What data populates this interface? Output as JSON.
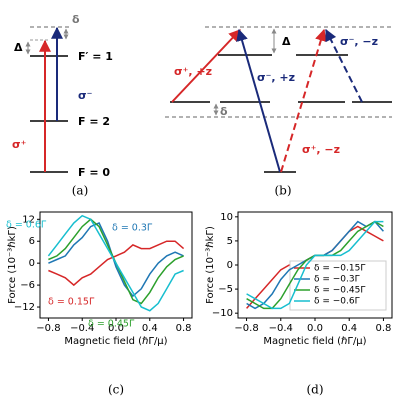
{
  "diagram_a": {
    "labels": {
      "delta": "δ",
      "Delta": "Δ",
      "f1": "F′ = 1",
      "sigma_minus": "σ⁻",
      "f2": "F = 2",
      "sigma_plus": "σ⁺",
      "f0": "F = 0"
    },
    "caption": "(a)"
  },
  "diagram_b": {
    "labels": {
      "sp_pz": "σ⁺, +z",
      "Delta": "Δ",
      "sm_pz": "σ⁻, +z",
      "sm_mz": "σ⁻, −z",
      "delta": "δ",
      "sp_mz": "σ⁺, −z"
    },
    "caption": "(b)"
  },
  "chart_data": [
    {
      "type": "line",
      "caption": "(c)",
      "x_label": "Magnetic field (ℏΓ/μ)",
      "y_label": "Force (10⁻³ℏkΓ)",
      "x": [
        -0.8,
        -0.7,
        -0.6,
        -0.5,
        -0.4,
        -0.3,
        -0.2,
        -0.1,
        0,
        0.1,
        0.2,
        0.3,
        0.4,
        0.5,
        0.6,
        0.7,
        0.8
      ],
      "xlim": [
        -0.9,
        0.9
      ],
      "ylim": [
        -15,
        14
      ],
      "xticks": [
        {
          "value": -0.8,
          "label": "−0.8"
        },
        {
          "value": -0.4,
          "label": "−0.4"
        },
        {
          "value": 0,
          "label": "0.0"
        },
        0.4,
        0.8
      ],
      "yticks": [
        {
          "value": -12,
          "label": "−12"
        },
        {
          "value": -6,
          "label": "−6"
        },
        0,
        6,
        12
      ],
      "series": [
        {
          "name": "δ = 0.15Γ",
          "color": "#d62728",
          "values": [
            -2,
            -3,
            -4,
            -6,
            -4,
            -3,
            -1,
            1,
            2,
            3,
            5,
            4,
            4,
            5,
            6,
            6,
            4
          ]
        },
        {
          "name": "δ = 0.3Γ",
          "color": "#1f77b4",
          "values": [
            0,
            1,
            2,
            5,
            7,
            10,
            11,
            6,
            -1,
            -6,
            -9,
            -7,
            -3,
            0,
            2,
            3,
            2
          ]
        },
        {
          "name": "δ = 0.45Γ",
          "color": "#2ca02c",
          "values": [
            1,
            2,
            4,
            7,
            10,
            12,
            10,
            5,
            0,
            -5,
            -10,
            -11,
            -8,
            -4,
            -1,
            1,
            2
          ]
        },
        {
          "name": "δ = 0.6Γ",
          "color": "#17becf",
          "values": [
            2,
            5,
            8,
            11,
            13,
            12,
            8,
            4,
            0,
            -4,
            -8,
            -12,
            -13,
            -11,
            -7,
            -3,
            -2
          ]
        }
      ]
    },
    {
      "type": "line",
      "caption": "(d)",
      "x_label": "Magnetic field (ℏΓ/μ)",
      "y_label": "Force (10⁻³ℏkΓ)",
      "x": [
        -0.8,
        -0.7,
        -0.6,
        -0.5,
        -0.4,
        -0.3,
        -0.2,
        -0.1,
        0,
        0.1,
        0.2,
        0.3,
        0.4,
        0.5,
        0.6,
        0.7,
        0.8
      ],
      "xlim": [
        -0.9,
        0.9
      ],
      "ylim": [
        -11,
        11
      ],
      "xticks": [
        {
          "value": -0.8,
          "label": "−0.8"
        },
        {
          "value": -0.4,
          "label": "−0.4"
        },
        {
          "value": 0,
          "label": "0.0"
        },
        0.4,
        0.8
      ],
      "yticks": [
        {
          "value": -10,
          "label": "−10"
        },
        {
          "value": -5,
          "label": "−5"
        },
        0,
        5,
        10
      ],
      "series": [
        {
          "name": "δ = −0.15Γ",
          "color": "#d62728",
          "values": [
            -9,
            -7,
            -5,
            -3,
            -1,
            0,
            0,
            1,
            2,
            2,
            3,
            5,
            7,
            8,
            7,
            6,
            5
          ]
        },
        {
          "name": "δ = −0.3Γ",
          "color": "#1f77b4",
          "values": [
            -8,
            -9,
            -8,
            -6,
            -3,
            -1,
            0,
            1,
            2,
            2,
            3,
            5,
            7,
            9,
            8,
            9,
            7
          ]
        },
        {
          "name": "δ = −0.45Γ",
          "color": "#2ca02c",
          "values": [
            -7,
            -8,
            -9,
            -9,
            -7,
            -4,
            -1,
            1,
            2,
            2,
            2,
            3,
            5,
            7,
            8,
            9,
            8
          ]
        },
        {
          "name": "δ = −0.6Γ",
          "color": "#17becf",
          "values": [
            -6,
            -7,
            -8,
            -9,
            -9,
            -8,
            -4,
            0,
            2,
            2,
            2,
            2,
            3,
            5,
            7,
            9,
            9
          ]
        }
      ]
    }
  ]
}
